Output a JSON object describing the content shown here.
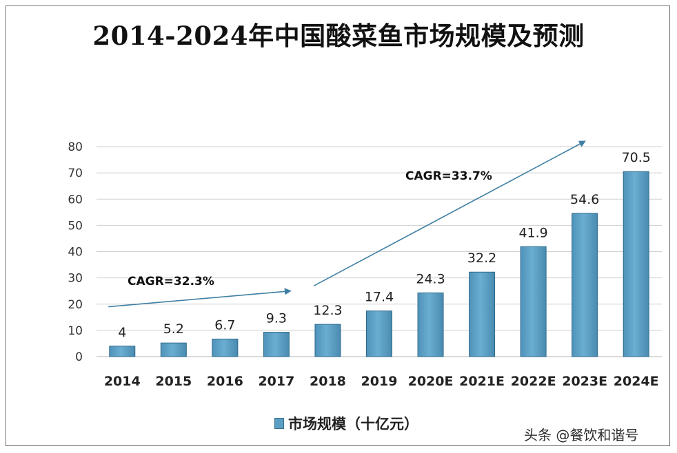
{
  "title": "2014-2024年中国酸菜鱼市场规模及预测",
  "chart_data": {
    "type": "bar",
    "title": "2014-2024年中国酸菜鱼市场规模及预测",
    "categories": [
      "2014",
      "2015",
      "2016",
      "2017",
      "2018",
      "2019",
      "2020E",
      "2021E",
      "2022E",
      "2023E",
      "2024E"
    ],
    "series": [
      {
        "name": "市场规模（十亿元）",
        "values": [
          4,
          5.2,
          6.7,
          9.3,
          12.3,
          17.4,
          24.3,
          32.2,
          41.9,
          54.6,
          70.5
        ],
        "labels": [
          "4",
          "5.2",
          "6.7",
          "9.3",
          "12.3",
          "17.4",
          "24.3",
          "32.2",
          "41.9",
          "54.6",
          "70.5"
        ]
      }
    ],
    "ylim": [
      0,
      80
    ],
    "yticks": [
      "0",
      "10",
      "20",
      "30",
      "40",
      "50",
      "60",
      "70",
      "80"
    ],
    "xlabel": "",
    "ylabel": "",
    "grid": true,
    "legend_position": "bottom",
    "annotations": [
      {
        "text": "CAGR=32.3%",
        "from_category": "2014",
        "to_category": "2017",
        "from_y": 19,
        "to_y": 25
      },
      {
        "text": "CAGR=33.7%",
        "from_category": "2018",
        "to_category": "2023E",
        "from_y": 27,
        "to_y": 82
      }
    ]
  },
  "legend": {
    "label": "市场规模（十亿元）"
  },
  "watermark": "头条 @餐饮和谐号",
  "colors": {
    "bar": "#5b9ec4",
    "bar_edge": "#2f6a8c",
    "arrow": "#3f7fa3",
    "grid": "#cfcfcf"
  }
}
